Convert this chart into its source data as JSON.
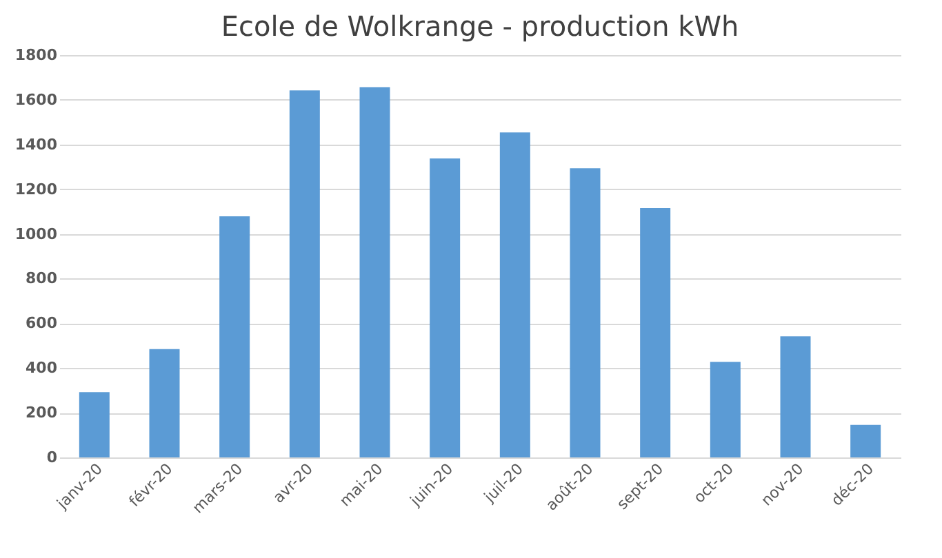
{
  "chart_data": {
    "type": "bar",
    "title": "Ecole de Wolkrange - production kWh",
    "categories": [
      "janv-20",
      "févr-20",
      "mars-20",
      "avr-20",
      "mai-20",
      "juin-20",
      "juil-20",
      "août-20",
      "sept-20",
      "oct-20",
      "nov-20",
      "déc-20"
    ],
    "values": [
      292,
      485,
      1079,
      1642,
      1657,
      1338,
      1454,
      1294,
      1116,
      428,
      542,
      146
    ],
    "color": "#5b9bd5",
    "ylim": [
      0,
      1800
    ],
    "yticks": [
      0,
      200,
      400,
      600,
      800,
      1000,
      1200,
      1400,
      1600,
      1800
    ],
    "grid": "y"
  }
}
